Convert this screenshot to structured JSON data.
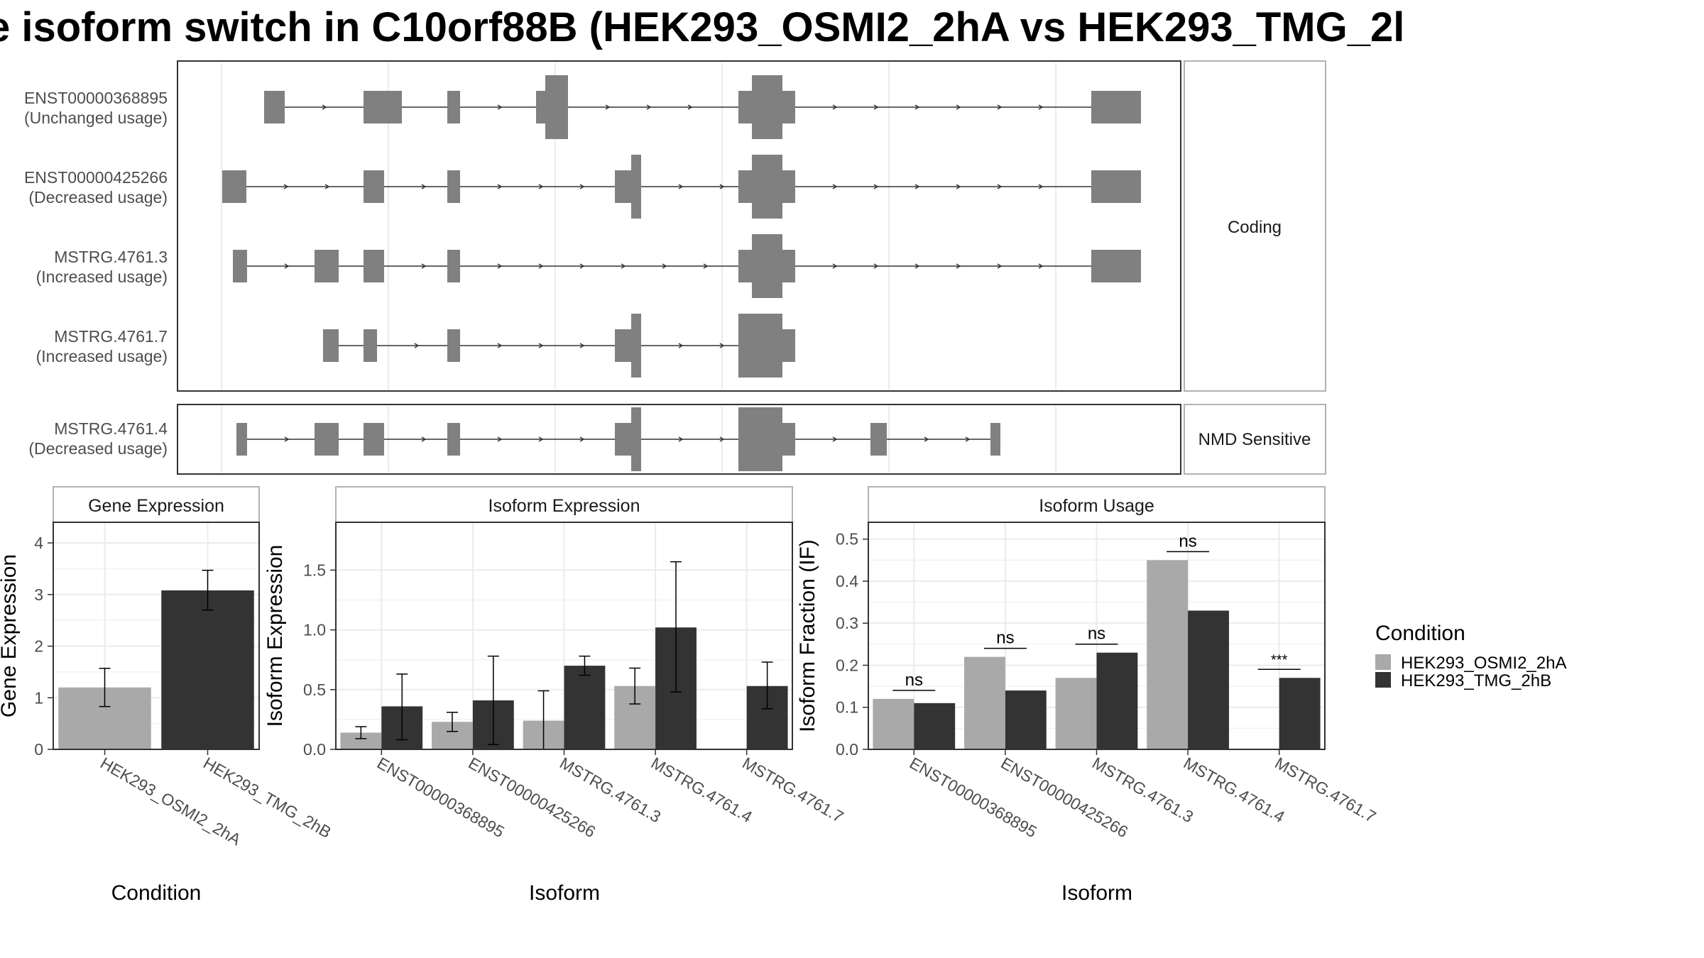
{
  "title": "e isoform switch in C10orf88B (HEK293_OSMI2_2hA vs HEK293_TMG_2l",
  "colors": {
    "cond1": "#a9a9a9",
    "cond2": "#333333",
    "exon": "#808080",
    "intron": "#333333",
    "grid": "#ebebeb",
    "panel_border": "#333333",
    "strip_border": "#b3b3b3",
    "text": "#4d4d4d"
  },
  "legend": {
    "title": "Condition",
    "items": [
      "HEK293_OSMI2_2hA",
      "HEK293_TMG_2hB"
    ]
  },
  "structure": {
    "groups": [
      {
        "label": "Coding",
        "isoforms": [
          {
            "id": "ENST00000368895",
            "status": "(Unchanged usage)"
          },
          {
            "id": "ENST00000425266",
            "status": "(Decreased usage)"
          },
          {
            "id": "MSTRG.4761.3",
            "status": "(Increased usage)"
          },
          {
            "id": "MSTRG.4761.7",
            "status": "(Increased usage)"
          }
        ]
      },
      {
        "label": "NMD Sensitive",
        "isoforms": [
          {
            "id": "MSTRG.4761.4",
            "status": "(Decreased usage)"
          }
        ]
      }
    ]
  },
  "chart_data": [
    {
      "type": "bar",
      "panel": "Gene Expression",
      "xlabel": "Condition",
      "ylabel": "Gene Expression",
      "ylim": [
        0,
        4.4
      ],
      "yticks": [
        "0",
        "1",
        "2",
        "3",
        "4"
      ],
      "categories": [
        "HEK293_OSMI2_2hA",
        "HEK293_TMG_2hB"
      ],
      "values": [
        1.2,
        3.08
      ],
      "error": [
        [
          0.83,
          1.57
        ],
        [
          2.7,
          3.47
        ]
      ]
    },
    {
      "type": "bar",
      "panel": "Isoform Expression",
      "xlabel": "Isoform",
      "ylabel": "Isoform Expression",
      "ylim": [
        0,
        1.9
      ],
      "yticks": [
        "0.0",
        "0.5",
        "1.0",
        "1.5"
      ],
      "categories": [
        "ENST00000368895",
        "ENST00000425266",
        "MSTRG.4761.3",
        "MSTRG.4761.4",
        "MSTRG.4761.7"
      ],
      "series": [
        {
          "name": "HEK293_OSMI2_2hA",
          "values": [
            0.14,
            0.23,
            0.24,
            0.53,
            0.0
          ],
          "error": [
            [
              0.09,
              0.19
            ],
            [
              0.15,
              0.31
            ],
            [
              0.0,
              0.49
            ],
            [
              0.38,
              0.68
            ],
            [
              0.0,
              0.0
            ]
          ]
        },
        {
          "name": "HEK293_TMG_2hB",
          "values": [
            0.36,
            0.41,
            0.7,
            1.02,
            0.53
          ],
          "error": [
            [
              0.08,
              0.63
            ],
            [
              0.04,
              0.78
            ],
            [
              0.62,
              0.78
            ],
            [
              0.48,
              1.57
            ],
            [
              0.34,
              0.73
            ]
          ]
        }
      ]
    },
    {
      "type": "bar",
      "panel": "Isoform Usage",
      "xlabel": "Isoform",
      "ylabel": "Isoform Fraction (IF)",
      "ylim": [
        0,
        0.54
      ],
      "yticks": [
        "0.0",
        "0.1",
        "0.2",
        "0.3",
        "0.4",
        "0.5"
      ],
      "categories": [
        "ENST00000368895",
        "ENST00000425266",
        "MSTRG.4761.3",
        "MSTRG.4761.4",
        "MSTRG.4761.7"
      ],
      "series": [
        {
          "name": "HEK293_OSMI2_2hA",
          "values": [
            0.12,
            0.22,
            0.17,
            0.45,
            0.0
          ]
        },
        {
          "name": "HEK293_TMG_2hB",
          "values": [
            0.11,
            0.14,
            0.23,
            0.33,
            0.17
          ]
        }
      ],
      "significance": [
        "ns",
        "ns",
        "ns",
        "ns",
        "***"
      ]
    }
  ]
}
